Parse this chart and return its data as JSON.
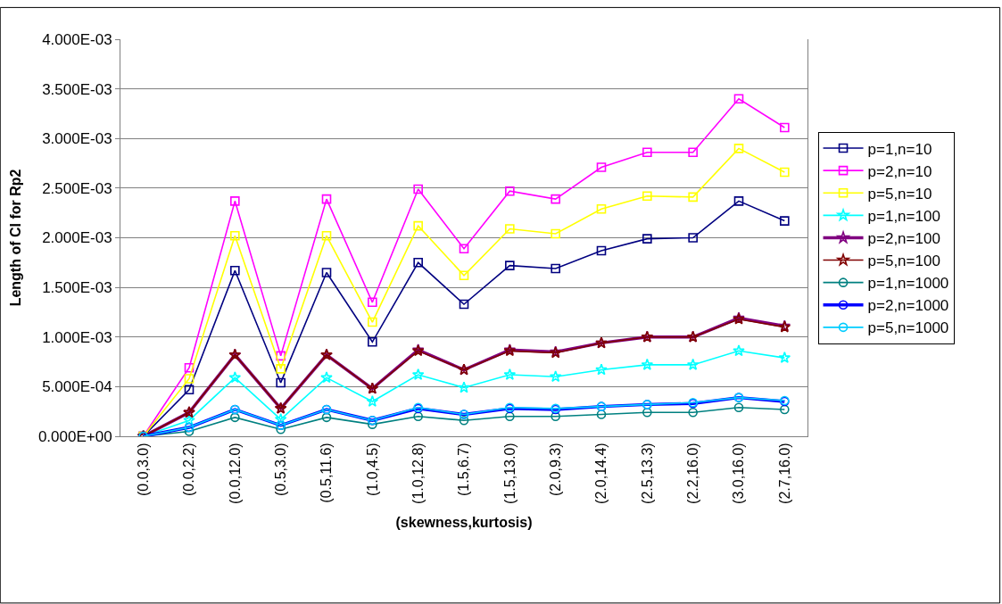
{
  "chart_data": {
    "type": "line",
    "xlabel": "(skewness,kurtosis)",
    "ylabel": "Length of CI for Rp2",
    "categories": [
      "(0.0,3.0)",
      "(0.0,2.2)",
      "(0.0,12.0)",
      "(0.5,3.0)",
      "(0.5,11.6)",
      "(1.0,4.5)",
      "(1.0,12.8)",
      "(1.5,6.7)",
      "(1.5,13.0)",
      "(2.0,9.3)",
      "(2.0,14.4)",
      "(2.5,13.3)",
      "(2.2,16.0)",
      "(3.0,16.0)",
      "(2.7,16.0)"
    ],
    "ylim": [
      0,
      0.004
    ],
    "yticks": [
      {
        "value": 0,
        "label": "0.000E+00"
      },
      {
        "value": 0.0005,
        "label": "5.000E-04"
      },
      {
        "value": 0.001,
        "label": "1.000E-03"
      },
      {
        "value": 0.0015,
        "label": "1.500E-03"
      },
      {
        "value": 0.002,
        "label": "2.000E-03"
      },
      {
        "value": 0.0025,
        "label": "2.500E-03"
      },
      {
        "value": 0.003,
        "label": "3.000E-03"
      },
      {
        "value": 0.0035,
        "label": "3.500E-03"
      },
      {
        "value": 0.004,
        "label": "4.000E-03"
      }
    ],
    "grid": "y",
    "legend": "right",
    "series": [
      {
        "name": "p=1,n=10",
        "color": "#000080",
        "marker": "square",
        "values": [
          0,
          0.00047,
          0.00167,
          0.00054,
          0.00165,
          0.00095,
          0.00175,
          0.00133,
          0.00172,
          0.00169,
          0.00187,
          0.00199,
          0.002,
          0.00237,
          0.00217
        ]
      },
      {
        "name": "p=2,n=10",
        "color": "#ff00ff",
        "marker": "square",
        "values": [
          0,
          0.00069,
          0.00237,
          0.00081,
          0.00239,
          0.00135,
          0.00249,
          0.00189,
          0.00247,
          0.00239,
          0.00271,
          0.00286,
          0.00286,
          0.0034,
          0.00311
        ]
      },
      {
        "name": "p=5,n=10",
        "color": "#ffff00",
        "marker": "square",
        "values": [
          0,
          0.00058,
          0.00202,
          0.00068,
          0.00202,
          0.00115,
          0.00212,
          0.00162,
          0.00209,
          0.00204,
          0.00229,
          0.00242,
          0.00241,
          0.0029,
          0.00266
        ]
      },
      {
        "name": "p=1,n=100",
        "color": "#00ffff",
        "marker": "star",
        "values": [
          0,
          0.00016,
          0.00059,
          0.00017,
          0.00059,
          0.00035,
          0.00062,
          0.00049,
          0.00062,
          0.0006,
          0.00067,
          0.00072,
          0.00072,
          0.00086,
          0.00079
        ]
      },
      {
        "name": "p=2,n=100",
        "color": "#800080",
        "marker": "star",
        "values": [
          0,
          0.00024,
          0.00082,
          0.00028,
          0.00082,
          0.00048,
          0.00087,
          0.00067,
          0.00087,
          0.00085,
          0.00094,
          0.001,
          0.001,
          0.00119,
          0.00111
        ]
      },
      {
        "name": "p=5,n=100",
        "color": "#800000",
        "marker": "star",
        "values": [
          0,
          0.00024,
          0.00082,
          0.00028,
          0.00082,
          0.00048,
          0.00086,
          0.00067,
          0.00086,
          0.00084,
          0.00094,
          0.001,
          0.001,
          0.00118,
          0.0011
        ]
      },
      {
        "name": "p=1,n=1000",
        "color": "#008080",
        "marker": "circle",
        "values": [
          0,
          5e-05,
          0.00019,
          7e-05,
          0.00019,
          0.00012,
          0.0002,
          0.00016,
          0.0002,
          0.0002,
          0.00022,
          0.00024,
          0.00024,
          0.00029,
          0.00027
        ]
      },
      {
        "name": "p=2,n=1000",
        "color": "#0000ff",
        "marker": "circle",
        "values": [
          0,
          9e-05,
          0.00027,
          0.00011,
          0.00027,
          0.00016,
          0.00028,
          0.00022,
          0.00028,
          0.00027,
          0.0003,
          0.00032,
          0.00033,
          0.00039,
          0.00035
        ]
      },
      {
        "name": "p=5,n=1000",
        "color": "#00ccff",
        "marker": "circle",
        "values": [
          0,
          9e-05,
          0.00027,
          0.00011,
          0.00027,
          0.00016,
          0.00029,
          0.00022,
          0.00029,
          0.00028,
          0.0003,
          0.00032,
          0.00034,
          0.00039,
          0.00036
        ]
      }
    ]
  }
}
